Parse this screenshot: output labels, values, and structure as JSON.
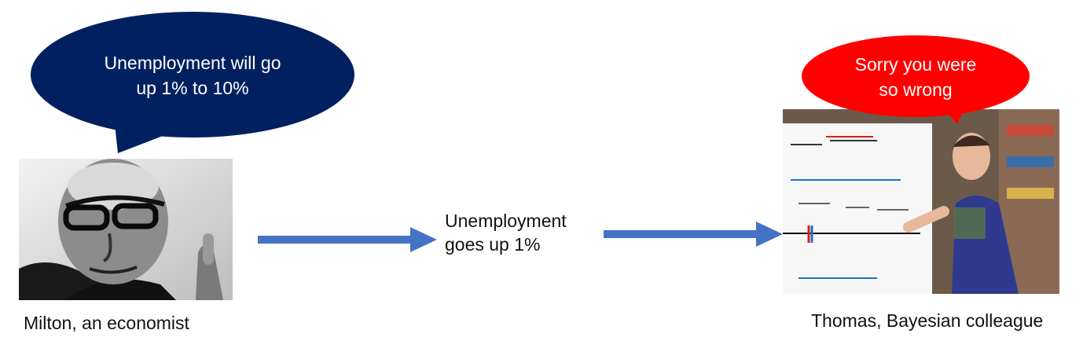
{
  "left_bubble": {
    "text_line1": "Unemployment will go",
    "text_line2": "up 1% to 10%",
    "color": "#002060"
  },
  "right_bubble": {
    "text_line1": "Sorry you were",
    "text_line2": "so wrong",
    "color": "#ff0000"
  },
  "middle": {
    "line1": "Unemployment",
    "line2": "goes up 1%"
  },
  "captions": {
    "left": "Milton, an economist",
    "right": "Thomas, Bayesian colleague"
  },
  "arrow_color": "#4472c4"
}
